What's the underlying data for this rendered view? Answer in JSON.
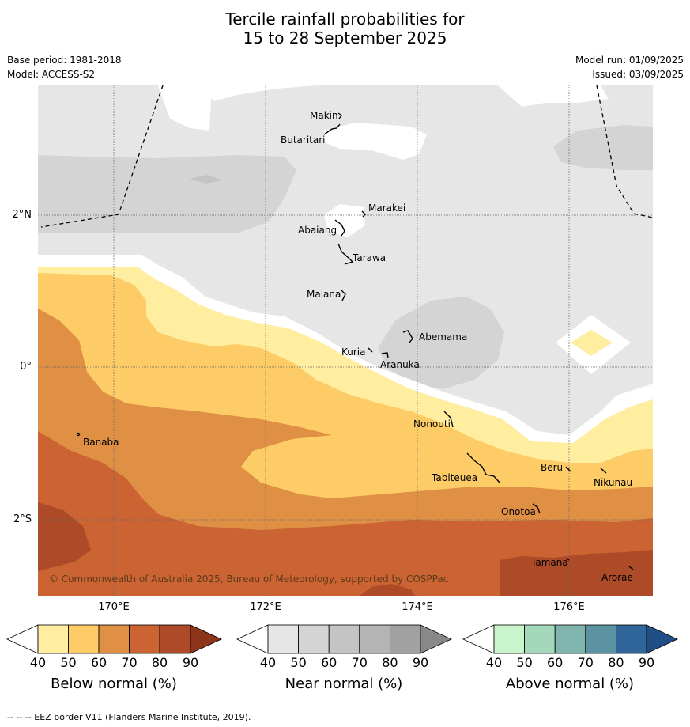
{
  "title_line1": "Tercile rainfall probabilities for",
  "title_line2": "15 to 28 September 2025",
  "base_period": "Base period: 1981-2018",
  "model": "Model: ACCESS-S2",
  "model_run": "Model run: 01/09/2025",
  "issued": "Issued: 03/09/2025",
  "copyright": "© Commonwealth of Australia 2025, Bureau of Meteorology, supported by COSPPac",
  "lon_labels": [
    "170°E",
    "172°E",
    "174°E",
    "176°E"
  ],
  "lat_labels": [
    "2°N",
    "0°",
    "2°S"
  ],
  "places": {
    "makin": "Makin",
    "butaritari": "Butaritari",
    "marakei": "Marakei",
    "abaiang": "Abaiang",
    "tarawa": "Tarawa",
    "maiana": "Maiana",
    "abemama": "Abemama",
    "kuria": "Kuria",
    "aranuka": "Aranuka",
    "banaba": "Banaba",
    "nonouti": "Nonouti",
    "tabiteuea": "Tabiteuea",
    "beru": "Beru",
    "nikunau": "Nikunau",
    "onotoa": "Onotoa",
    "tamana": "Tamana",
    "arorae": "Arorae"
  },
  "colorbars": {
    "below": {
      "title": "Below normal (%)",
      "ticks": [
        "40",
        "50",
        "60",
        "70",
        "80",
        "90"
      ],
      "colors": [
        "#ffffff",
        "#ffeda0",
        "#fecc66",
        "#e09044",
        "#cb6332",
        "#ad4a27",
        "#8c351b"
      ]
    },
    "near": {
      "title": "Near normal (%)",
      "ticks": [
        "40",
        "50",
        "60",
        "70",
        "80",
        "90"
      ],
      "colors": [
        "#ffffff",
        "#e6e6e6",
        "#d4d4d4",
        "#c4c4c4",
        "#b4b4b4",
        "#a2a2a2",
        "#888888"
      ]
    },
    "above": {
      "title": "Above normal (%)",
      "ticks": [
        "40",
        "50",
        "60",
        "70",
        "80",
        "90"
      ],
      "colors": [
        "#ffffff",
        "#c9f5cc",
        "#a4d8ba",
        "#7fb5ad",
        "#5b93a2",
        "#2f6598",
        "#1f4f86"
      ]
    }
  },
  "footnote": "--  --  -- EEZ border V11 (Flanders Marine Institute, 2019)."
}
